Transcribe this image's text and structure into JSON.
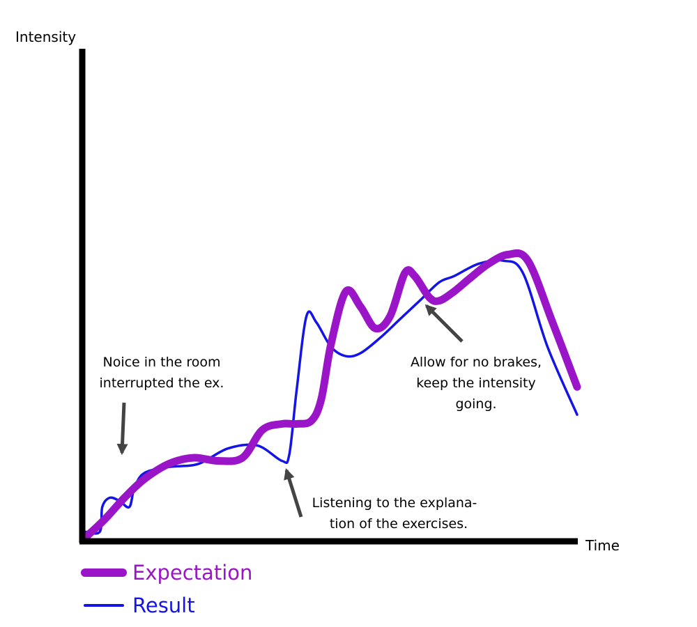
{
  "chart_data": {
    "type": "line",
    "title": "",
    "xlabel": "Time",
    "ylabel": "Intensity",
    "xlim": [
      0,
      100
    ],
    "ylim": [
      0,
      100
    ],
    "grid": false,
    "ticks": false,
    "legend_position": "bottom-left",
    "series": [
      {
        "name": "Expectation",
        "color": "#9a14c8",
        "x": [
          0,
          4,
          8,
          12,
          17,
          22,
          27,
          32,
          36,
          40,
          43,
          46,
          48,
          50,
          53,
          56,
          59,
          62,
          65,
          67,
          70,
          72,
          75,
          78,
          82,
          86,
          90,
          95,
          100
        ],
        "y": [
          0,
          6,
          13,
          19,
          24,
          26,
          25,
          26,
          35,
          37,
          37,
          38,
          45,
          63,
          80,
          75,
          68,
          72,
          86,
          85,
          78,
          77,
          80,
          84,
          89,
          92,
          90,
          70,
          49
        ]
      },
      {
        "name": "Result",
        "color": "#1414e6",
        "x": [
          0,
          3,
          3.5,
          5,
          7,
          9,
          10,
          12,
          17,
          23,
          29,
          35,
          40,
          41.5,
          43,
          45,
          47,
          50,
          53,
          56,
          60,
          64,
          68,
          72,
          75,
          80,
          85,
          89,
          94,
          100
        ],
        "y": [
          2,
          2,
          10,
          13,
          12,
          10,
          16,
          21,
          23,
          24,
          29,
          30,
          25,
          27,
          48,
          72,
          70,
          62,
          59,
          60,
          65,
          71,
          77,
          83,
          85,
          89,
          90,
          86,
          62,
          40
        ]
      }
    ],
    "annotations": [
      {
        "text_lines": [
          "Noice in the room",
          "interrupted the ex."
        ],
        "points_to": {
          "x": 8,
          "y": 22
        }
      },
      {
        "text_lines": [
          "Listening to the explana-",
          "tion of the exercises."
        ],
        "points_to": {
          "x": 40,
          "y": 20
        }
      },
      {
        "text_lines": [
          "Allow for no brakes,",
          "keep the intensity",
          "going."
        ],
        "points_to": {
          "x": 69,
          "y": 70
        }
      }
    ]
  }
}
